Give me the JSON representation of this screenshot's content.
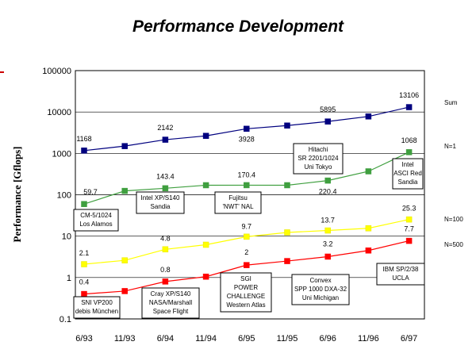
{
  "chart_data": {
    "type": "line",
    "title": "Performance Development",
    "ylabel": "Performance [Gflops]",
    "xlabel": "",
    "y_scale": "log",
    "ylim": [
      0.1,
      100000
    ],
    "y_ticks": [
      "100000",
      "10000",
      "1000",
      "100",
      "10",
      "1",
      "0.1"
    ],
    "y_tick_labels": [
      "100000",
      "10000",
      "1000",
      "100",
      "10",
      "1",
      "0.1"
    ],
    "categories": [
      "6/93",
      "11/93",
      "6/94",
      "11/94",
      "6/95",
      "11/95",
      "6/96",
      "11/96",
      "6/97"
    ],
    "grid": "horizontal",
    "series": [
      {
        "name": "Sum",
        "color": "#00007f",
        "values": [
          1168,
          1500,
          2142,
          2650,
          3928,
          4700,
          5895,
          7800,
          13106
        ]
      },
      {
        "name": "N=1",
        "color": "#3f9f3f",
        "values": [
          59.7,
          124,
          143.4,
          170,
          170.4,
          170,
          220.4,
          368,
          1068
        ]
      },
      {
        "name": "N=100",
        "color": "#ffff00",
        "values": [
          2.1,
          2.6,
          4.8,
          6.2,
          9.7,
          12.3,
          13.7,
          15.5,
          25.3
        ]
      },
      {
        "name": "N=500",
        "color": "#ff0000",
        "values": [
          0.4,
          0.47,
          0.8,
          1.05,
          2.0,
          2.5,
          3.2,
          4.5,
          7.7
        ]
      }
    ],
    "data_labels": [
      {
        "series": 0,
        "index": 0,
        "text": "1168"
      },
      {
        "series": 0,
        "index": 2,
        "text": "2142"
      },
      {
        "series": 0,
        "index": 4,
        "text": "3928"
      },
      {
        "series": 0,
        "index": 6,
        "text": "5895"
      },
      {
        "series": 0,
        "index": 8,
        "text": "13106"
      },
      {
        "series": 1,
        "index": 0,
        "text": "59.7"
      },
      {
        "series": 1,
        "index": 2,
        "text": "143.4"
      },
      {
        "series": 1,
        "index": 4,
        "text": "170.4"
      },
      {
        "series": 1,
        "index": 6,
        "text": "220.4"
      },
      {
        "series": 1,
        "index": 8,
        "text": "1068"
      },
      {
        "series": 2,
        "index": 0,
        "text": "2.1"
      },
      {
        "series": 2,
        "index": 2,
        "text": "4.8"
      },
      {
        "series": 2,
        "index": 4,
        "text": "9.7"
      },
      {
        "series": 2,
        "index": 6,
        "text": "13.7"
      },
      {
        "series": 2,
        "index": 8,
        "text": "25.3"
      },
      {
        "series": 3,
        "index": 0,
        "text": "0.4"
      },
      {
        "series": 3,
        "index": 2,
        "text": "0.8"
      },
      {
        "series": 3,
        "index": 4,
        "text": "2"
      },
      {
        "series": 3,
        "index": 6,
        "text": "3.2"
      },
      {
        "series": 3,
        "index": 8,
        "text": "7.7"
      }
    ],
    "series_end_labels": [
      "Sum",
      "N=1",
      "N=100",
      "N=500"
    ],
    "annotations": [
      {
        "lines": [
          "CM-5/1024",
          "Los Alamos"
        ]
      },
      {
        "lines": [
          "Intel XP/S140",
          "Sandia"
        ]
      },
      {
        "lines": [
          "Fujitsu",
          "'NWT' NAL"
        ]
      },
      {
        "lines": [
          "Hitachi",
          "SR 2201/1024",
          "Uni Tokyo"
        ]
      },
      {
        "lines": [
          "Intel",
          "ASCI Red",
          "Sandia"
        ]
      },
      {
        "lines": [
          "SNI VP200",
          "debis München"
        ]
      },
      {
        "lines": [
          "Cray XP/S140",
          "NASA/Marshall",
          "Space Flight"
        ]
      },
      {
        "lines": [
          "SGI",
          "POWER",
          "CHALLENGE",
          "Western Atlas"
        ]
      },
      {
        "lines": [
          "Convex",
          "SPP 1000 DXA-32",
          "Uni Michigan"
        ]
      },
      {
        "lines": [
          "IBM SP/2/38",
          "UCLA"
        ]
      }
    ]
  }
}
